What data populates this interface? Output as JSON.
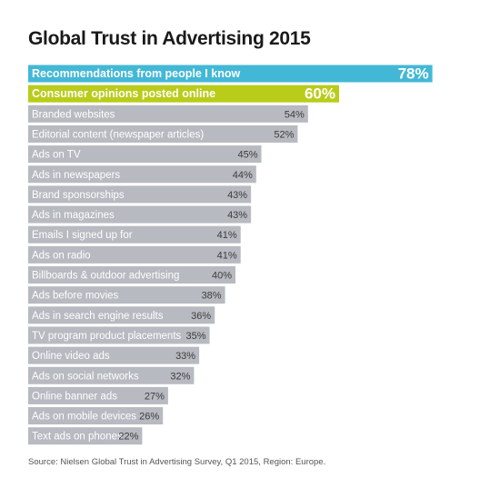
{
  "title": "Global Trust in Advertising 2015",
  "source": "Source: Nielsen Global Trust in Advertising Survey, Q1 2015, Region: Europe.",
  "colors": {
    "highlight_1": "#43b8d6",
    "highlight_2": "#b9cc1a",
    "default_bar": "#b7bac0",
    "default_text": "#ffffff",
    "value_text": "#3c3c3c"
  },
  "chart_data": {
    "type": "bar",
    "orientation": "horizontal",
    "title": "Global Trust in Advertising 2015",
    "unit": "%",
    "categories": [
      "Recommendations from people I know",
      "Consumer opinions posted online",
      "Branded websites",
      "Editorial content (newspaper articles)",
      "Ads on TV",
      "Ads in newspapers",
      "Brand sponsorships",
      "Ads in magazines",
      "Emails I signed up for",
      "Ads on radio",
      "Billboards & outdoor advertising",
      "Ads before movies",
      "Ads in search engine results",
      "TV program product placements",
      "Online video ads",
      "Ads on social networks",
      "Online banner ads",
      "Ads on mobile devices",
      "Text ads on phones"
    ],
    "values": [
      78,
      60,
      54,
      52,
      45,
      44,
      43,
      43,
      41,
      41,
      40,
      38,
      36,
      35,
      33,
      32,
      27,
      26,
      22
    ],
    "value_labels": [
      "78%",
      "60%",
      "54%",
      "52%",
      "45%",
      "44%",
      "43%",
      "43%",
      "41%",
      "41%",
      "40%",
      "38%",
      "36%",
      "35%",
      "33%",
      "32%",
      "27%",
      "26%",
      "22%"
    ],
    "highlighted": [
      0,
      1
    ]
  }
}
